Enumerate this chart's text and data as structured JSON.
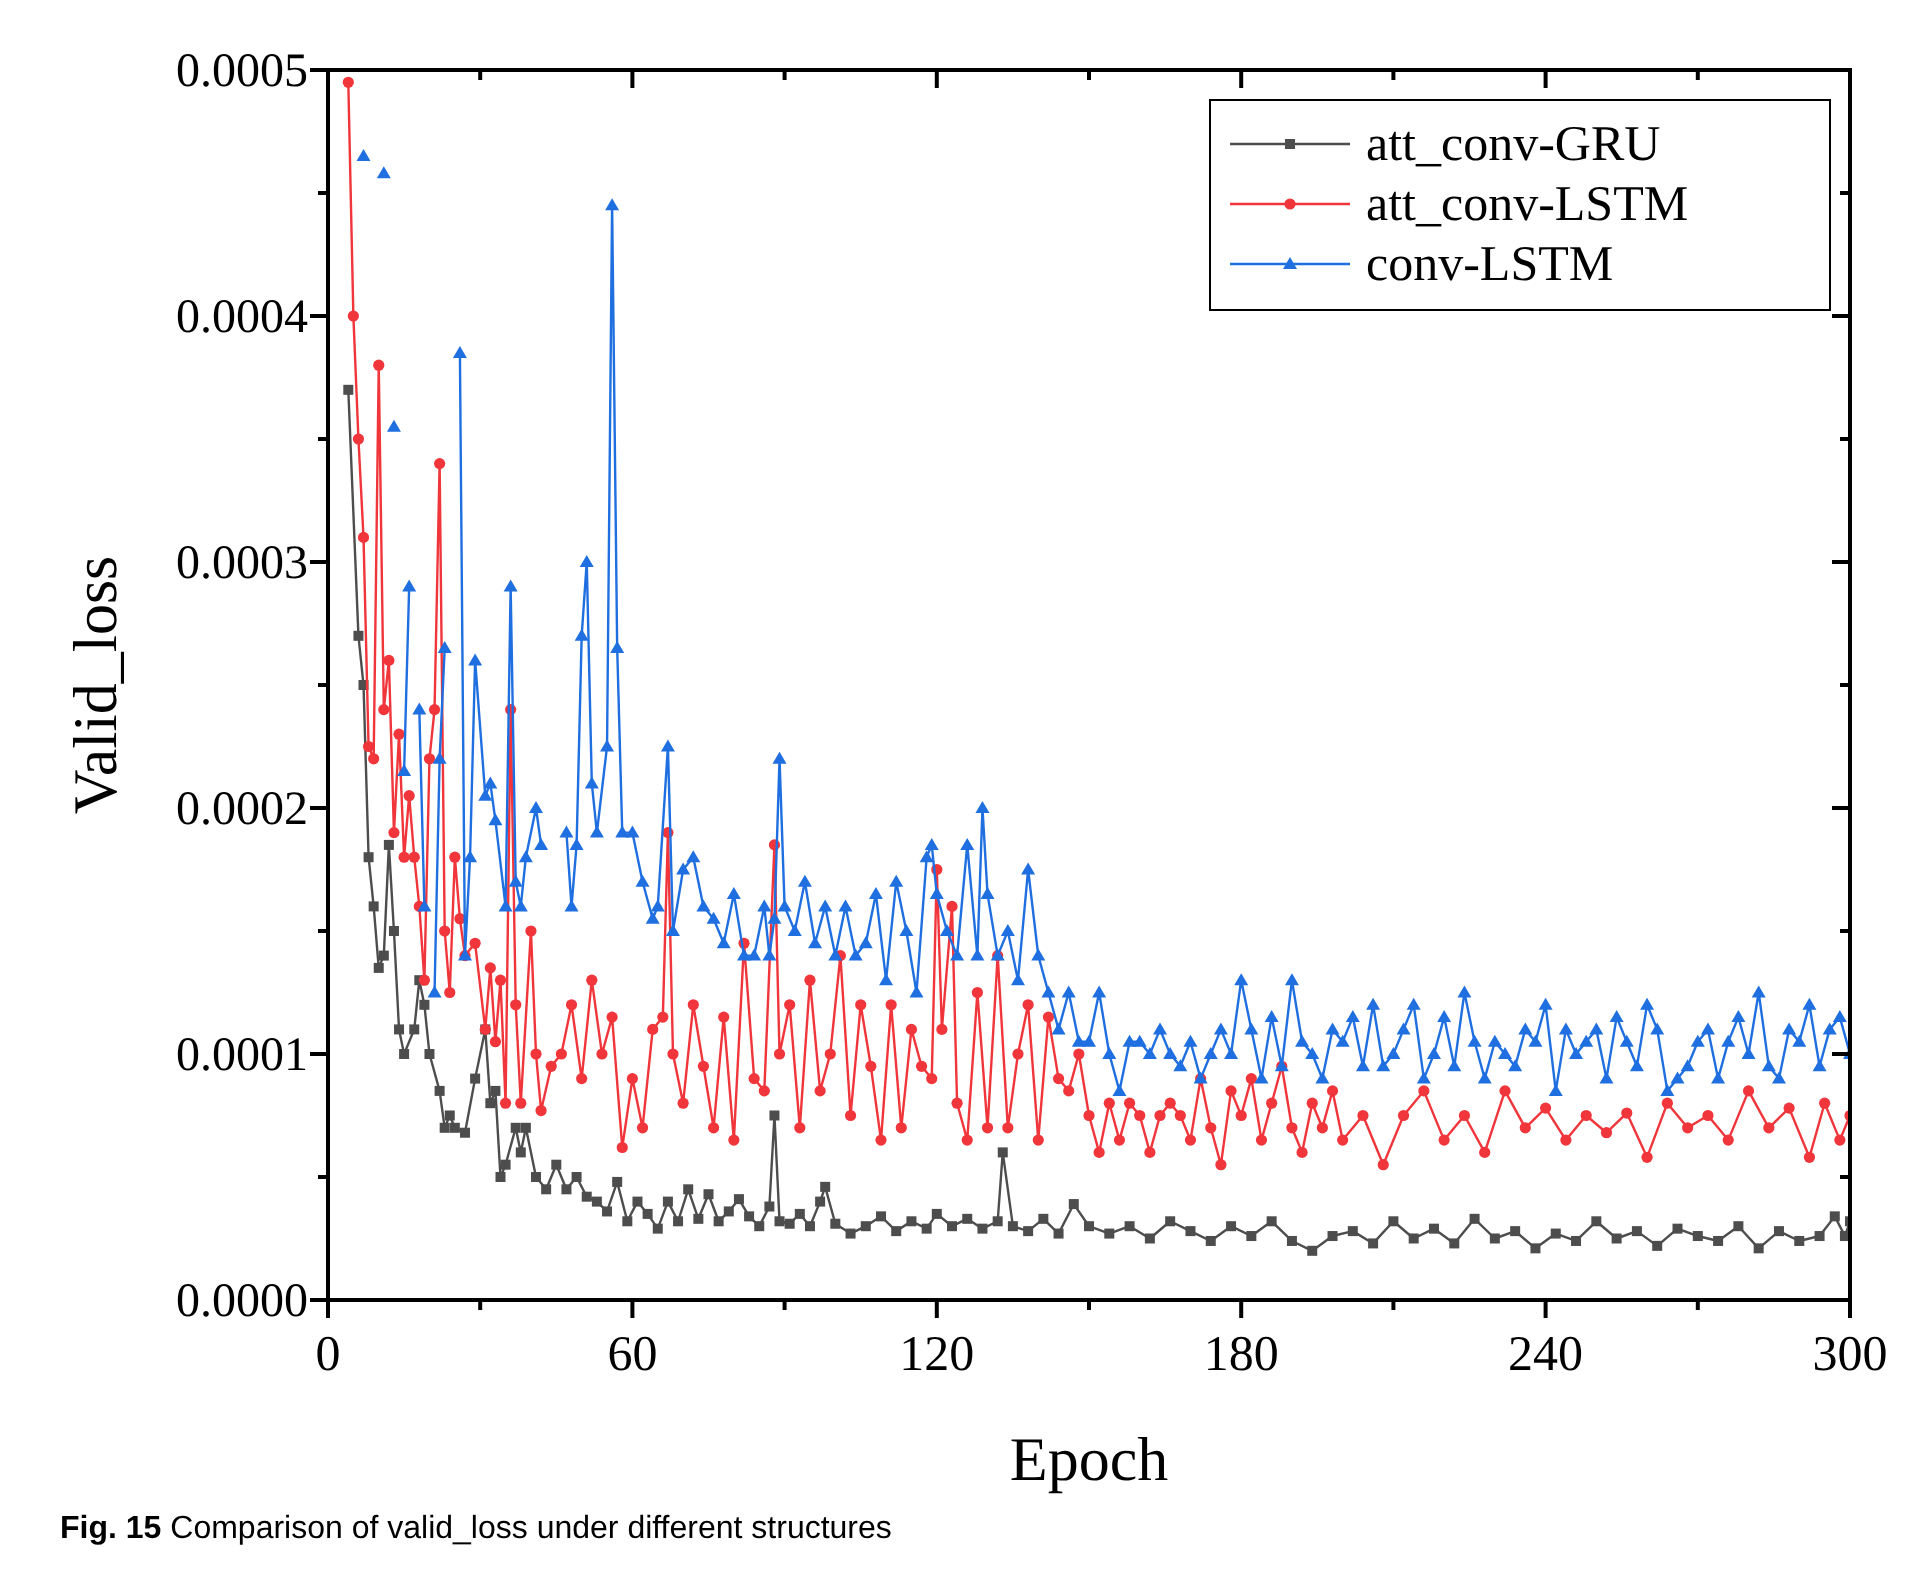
{
  "chart_data": {
    "type": "line",
    "xlabel": "Epoch",
    "ylabel": "Valid_loss",
    "xlim": [
      0,
      300
    ],
    "xticks": [
      0,
      {
        "value": 30,
        "label": null
      },
      60,
      {
        "value": 90,
        "label": null
      },
      120,
      {
        "value": 150,
        "label": null
      },
      180,
      {
        "value": 210,
        "label": null
      },
      240,
      {
        "value": 270,
        "label": null
      },
      300
    ],
    "ylim": [
      0,
      0.0005
    ],
    "yticks": [
      {
        "value": 0,
        "label": "0.0000"
      },
      {
        "value": 5e-05,
        "label": null
      },
      {
        "value": 0.0001,
        "label": "0.0001"
      },
      {
        "value": 0.00015,
        "label": null
      },
      {
        "value": 0.0002,
        "label": "0.0002"
      },
      {
        "value": 0.00025,
        "label": null
      },
      {
        "value": 0.0003,
        "label": "0.0003"
      },
      {
        "value": 0.00035,
        "label": null
      },
      {
        "value": 0.0004,
        "label": "0.0004"
      },
      {
        "value": 0.00045,
        "label": null
      },
      {
        "value": 0.0005,
        "label": "0.0005"
      }
    ],
    "grid": false,
    "legend": "top right",
    "line_style": "solid",
    "annotations": [
      "Fig. 15 Comparison of valid_loss under different structures"
    ],
    "series": [
      {
        "name": "att_conv-GRU",
        "color": "#4d4d4d",
        "marker": "square",
        "x": [
          4,
          6,
          7,
          8,
          9,
          10,
          11,
          12,
          13,
          14,
          15,
          17,
          18,
          19,
          20,
          22,
          23,
          24,
          25,
          27,
          29,
          31,
          32,
          33,
          34,
          35,
          37,
          38,
          39,
          41,
          43,
          45,
          47,
          49,
          51,
          53,
          55,
          57,
          59,
          61,
          63,
          65,
          67,
          69,
          71,
          73,
          75,
          77,
          79,
          81,
          83,
          85,
          87,
          88,
          89,
          91,
          93,
          95,
          97,
          98,
          100,
          103,
          106,
          109,
          112,
          115,
          118,
          120,
          123,
          126,
          129,
          132,
          133,
          135,
          138,
          141,
          144,
          147,
          150,
          154,
          158,
          162,
          166,
          170,
          174,
          178,
          182,
          186,
          190,
          194,
          198,
          202,
          206,
          210,
          214,
          218,
          222,
          226,
          230,
          234,
          238,
          242,
          246,
          250,
          254,
          258,
          262,
          266,
          270,
          274,
          278,
          282,
          286,
          290,
          294,
          297,
          299,
          300
        ],
        "values": [
          0.00037,
          0.00027,
          0.00025,
          0.00018,
          0.00016,
          0.000135,
          0.00014,
          0.000185,
          0.00015,
          0.00011,
          0.0001,
          0.00011,
          0.00013,
          0.00012,
          0.0001,
          8.5e-05,
          7e-05,
          7.5e-05,
          7e-05,
          6.8e-05,
          9e-05,
          0.00011,
          8e-05,
          8.5e-05,
          5e-05,
          5.5e-05,
          7e-05,
          6e-05,
          7e-05,
          5e-05,
          4.5e-05,
          5.5e-05,
          4.5e-05,
          5e-05,
          4.2e-05,
          4e-05,
          3.6e-05,
          4.8e-05,
          3.2e-05,
          4e-05,
          3.5e-05,
          2.9e-05,
          4e-05,
          3.2e-05,
          4.5e-05,
          3.3e-05,
          4.3e-05,
          3.2e-05,
          3.6e-05,
          4.1e-05,
          3.4e-05,
          3e-05,
          3.8e-05,
          7.5e-05,
          3.2e-05,
          3.1e-05,
          3.5e-05,
          3e-05,
          4e-05,
          4.6e-05,
          3.1e-05,
          2.7e-05,
          3e-05,
          3.4e-05,
          2.8e-05,
          3.2e-05,
          2.9e-05,
          3.5e-05,
          3e-05,
          3.3e-05,
          2.9e-05,
          3.2e-05,
          6e-05,
          3e-05,
          2.8e-05,
          3.3e-05,
          2.7e-05,
          3.9e-05,
          3e-05,
          2.7e-05,
          3e-05,
          2.5e-05,
          3.2e-05,
          2.8e-05,
          2.4e-05,
          3e-05,
          2.6e-05,
          3.2e-05,
          2.4e-05,
          2e-05,
          2.6e-05,
          2.8e-05,
          2.3e-05,
          3.2e-05,
          2.5e-05,
          2.9e-05,
          2.3e-05,
          3.3e-05,
          2.5e-05,
          2.8e-05,
          2.1e-05,
          2.7e-05,
          2.4e-05,
          3.2e-05,
          2.5e-05,
          2.8e-05,
          2.2e-05,
          2.9e-05,
          2.6e-05,
          2.4e-05,
          3e-05,
          2.1e-05,
          2.8e-05,
          2.4e-05,
          2.6e-05,
          3.4e-05,
          2.6e-05,
          3.2e-05
        ]
      },
      {
        "name": "att_conv-LSTM",
        "color": "#f0353b",
        "marker": "circle",
        "x": [
          4,
          5,
          6,
          7,
          8,
          9,
          10,
          11,
          12,
          13,
          14,
          15,
          16,
          17,
          18,
          19,
          20,
          21,
          22,
          23,
          24,
          25,
          26,
          27,
          29,
          31,
          32,
          33,
          34,
          35,
          36,
          37,
          38,
          40,
          41,
          42,
          44,
          46,
          48,
          50,
          52,
          54,
          56,
          58,
          60,
          62,
          64,
          66,
          67,
          68,
          70,
          72,
          74,
          76,
          78,
          80,
          82,
          84,
          86,
          88,
          89,
          91,
          93,
          95,
          97,
          99,
          101,
          103,
          105,
          107,
          109,
          111,
          113,
          115,
          117,
          119,
          120,
          121,
          123,
          124,
          126,
          128,
          130,
          132,
          134,
          136,
          138,
          140,
          142,
          144,
          146,
          148,
          150,
          152,
          154,
          156,
          158,
          160,
          162,
          164,
          166,
          168,
          170,
          172,
          174,
          176,
          178,
          180,
          182,
          184,
          186,
          188,
          190,
          192,
          194,
          196,
          198,
          200,
          204,
          208,
          212,
          216,
          220,
          224,
          228,
          232,
          236,
          240,
          244,
          248,
          252,
          256,
          260,
          264,
          268,
          272,
          276,
          280,
          284,
          288,
          292,
          295,
          298,
          300
        ],
        "values": [
          0.000495,
          0.0004,
          0.00035,
          0.00031,
          0.000225,
          0.00022,
          0.00038,
          0.00024,
          0.00026,
          0.00019,
          0.00023,
          0.00018,
          0.000205,
          0.00018,
          0.00016,
          0.00013,
          0.00022,
          0.00024,
          0.00034,
          0.00015,
          0.000125,
          0.00018,
          0.000155,
          0.00014,
          0.000145,
          0.00011,
          0.000135,
          0.000105,
          0.00013,
          8e-05,
          0.00024,
          0.00012,
          8e-05,
          0.00015,
          0.0001,
          7.7e-05,
          9.5e-05,
          0.0001,
          0.00012,
          9e-05,
          0.00013,
          0.0001,
          0.000115,
          6.2e-05,
          9e-05,
          7e-05,
          0.00011,
          0.000115,
          0.00019,
          0.0001,
          8e-05,
          0.00012,
          9.5e-05,
          7e-05,
          0.000115,
          6.5e-05,
          0.000145,
          9e-05,
          8.5e-05,
          0.000185,
          0.0001,
          0.00012,
          7e-05,
          0.00013,
          8.5e-05,
          0.0001,
          0.00014,
          7.5e-05,
          0.00012,
          9.5e-05,
          6.5e-05,
          0.00012,
          7e-05,
          0.00011,
          9.5e-05,
          9e-05,
          0.000175,
          0.00011,
          0.00016,
          8e-05,
          6.5e-05,
          0.000125,
          7e-05,
          0.00014,
          7e-05,
          0.0001,
          0.00012,
          6.5e-05,
          0.000115,
          9e-05,
          8.5e-05,
          0.0001,
          7.5e-05,
          6e-05,
          8e-05,
          6.5e-05,
          8e-05,
          7.5e-05,
          6e-05,
          7.5e-05,
          8e-05,
          7.5e-05,
          6.5e-05,
          9e-05,
          7e-05,
          5.5e-05,
          8.5e-05,
          7.5e-05,
          9e-05,
          6.5e-05,
          8e-05,
          9.5e-05,
          7e-05,
          6e-05,
          8e-05,
          7e-05,
          8.5e-05,
          6.5e-05,
          7.5e-05,
          5.5e-05,
          7.5e-05,
          8.5e-05,
          6.5e-05,
          7.5e-05,
          6e-05,
          8.5e-05,
          7e-05,
          7.8e-05,
          6.5e-05,
          7.5e-05,
          6.8e-05,
          7.6e-05,
          5.8e-05,
          8e-05,
          7e-05,
          7.5e-05,
          6.5e-05,
          8.5e-05,
          7e-05,
          7.8e-05,
          5.8e-05,
          8e-05,
          6.5e-05,
          7.5e-05
        ]
      },
      {
        "name": "conv-LSTM",
        "color": "#1f6fe0",
        "marker": "triangle",
        "x": [
          7,
          9,
          11,
          12,
          13,
          14,
          15,
          16,
          17,
          18,
          19,
          20,
          21,
          22,
          23,
          24,
          26,
          27,
          28,
          29,
          31,
          32,
          33,
          35,
          36,
          37,
          38,
          39,
          41,
          42,
          44,
          47,
          48,
          49,
          50,
          51,
          52,
          53,
          55,
          56,
          57,
          58,
          60,
          62,
          64,
          65,
          67,
          68,
          70,
          72,
          74,
          76,
          78,
          80,
          82,
          84,
          86,
          87,
          88,
          89,
          90,
          92,
          94,
          96,
          98,
          100,
          102,
          104,
          106,
          108,
          110,
          112,
          114,
          116,
          118,
          119,
          120,
          122,
          124,
          126,
          128,
          129,
          130,
          132,
          134,
          136,
          138,
          140,
          142,
          144,
          146,
          148,
          150,
          152,
          154,
          156,
          158,
          160,
          162,
          164,
          166,
          168,
          170,
          172,
          174,
          176,
          178,
          180,
          182,
          184,
          186,
          188,
          190,
          192,
          194,
          196,
          198,
          200,
          202,
          204,
          206,
          208,
          210,
          212,
          214,
          216,
          218,
          220,
          222,
          224,
          226,
          228,
          230,
          232,
          234,
          236,
          238,
          240,
          242,
          244,
          246,
          248,
          250,
          252,
          254,
          256,
          258,
          260,
          262,
          264,
          266,
          268,
          270,
          272,
          274,
          276,
          278,
          280,
          282,
          284,
          286,
          288,
          290,
          292,
          294,
          296,
          298,
          300
        ],
        "values": [
          0.000465,
          null,
          0.000458,
          null,
          0.000355,
          null,
          0.000215,
          0.00029,
          null,
          0.00024,
          0.00016,
          null,
          0.000125,
          0.00022,
          0.000265,
          null,
          0.000385,
          0.00014,
          0.00018,
          0.00026,
          0.000205,
          0.00021,
          0.000195,
          0.00016,
          0.00029,
          0.00017,
          0.00016,
          0.00018,
          0.0002,
          0.000185,
          null,
          0.00019,
          0.00016,
          0.000185,
          0.00027,
          0.0003,
          0.00021,
          0.00019,
          0.000225,
          0.000445,
          0.000265,
          0.00019,
          0.00019,
          0.00017,
          0.000155,
          0.00016,
          0.000225,
          0.00015,
          0.000175,
          0.00018,
          0.00016,
          0.000155,
          0.000145,
          0.000165,
          0.00014,
          0.00014,
          0.00016,
          0.00014,
          0.000155,
          0.00022,
          0.00016,
          0.00015,
          0.00017,
          0.000145,
          0.00016,
          0.00014,
          0.00016,
          0.00014,
          0.000145,
          0.000165,
          0.00013,
          0.00017,
          0.00015,
          0.000125,
          0.00018,
          0.000185,
          0.000165,
          0.00015,
          0.00014,
          0.000185,
          0.00014,
          0.0002,
          0.000165,
          0.00014,
          0.00015,
          0.00013,
          0.000175,
          0.00014,
          0.000125,
          0.00011,
          0.000125,
          0.000105,
          0.000105,
          0.000125,
          0.0001,
          8.5e-05,
          0.000105,
          0.000105,
          0.0001,
          0.00011,
          0.0001,
          9.5e-05,
          0.000105,
          9e-05,
          0.0001,
          0.00011,
          0.0001,
          0.00013,
          0.00011,
          9e-05,
          0.000115,
          9.5e-05,
          0.00013,
          0.000105,
          0.0001,
          9e-05,
          0.00011,
          0.000105,
          0.000115,
          9.5e-05,
          0.00012,
          9.5e-05,
          0.0001,
          0.00011,
          0.00012,
          9e-05,
          0.0001,
          0.000115,
          9.5e-05,
          0.000125,
          0.000105,
          9e-05,
          0.000105,
          0.0001,
          9.5e-05,
          0.00011,
          0.000105,
          0.00012,
          8.5e-05,
          0.00011,
          0.0001,
          0.000105,
          0.00011,
          9e-05,
          0.000115,
          0.000105,
          9.5e-05,
          0.00012,
          0.00011,
          8.5e-05,
          9e-05,
          9.5e-05,
          0.000105,
          0.00011,
          9e-05,
          0.000105,
          0.000115,
          0.0001,
          0.000125,
          9.5e-05,
          9e-05,
          0.00011,
          0.000105,
          0.00012,
          9.5e-05,
          0.00011,
          0.000115,
          0.0001
        ]
      }
    ]
  }
}
